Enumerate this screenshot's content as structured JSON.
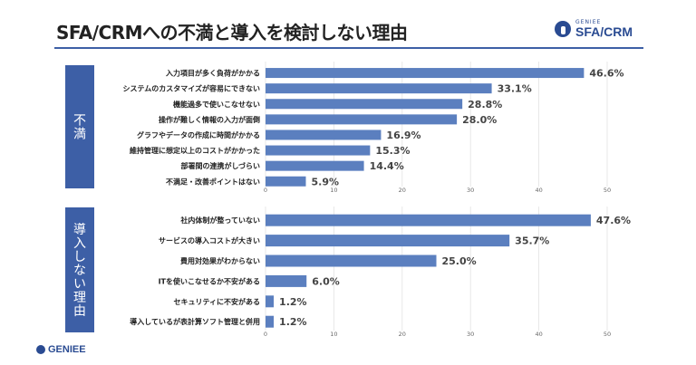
{
  "title": "SFA/CRMへの不満と導入を検討しない理由",
  "brand": {
    "small": "GENIEE",
    "big": "SFA/CRM"
  },
  "footer_logo": "GENIEE",
  "colors": {
    "bar": "#5b7fbf",
    "side_box": "#3d5fa6",
    "rule": "#3d5fa6"
  },
  "chart_data": [
    {
      "type": "bar",
      "orientation": "horizontal",
      "section_label": "不満",
      "categories": [
        "入力項目が多く負荷がかかる",
        "システムのカスタマイズが容易にできない",
        "機能過多で使いこなせない",
        "操作が難しく情報の入力が面倒",
        "グラフやデータの作成に時間がかかる",
        "維持管理に想定以上のコストがかかった",
        "部署間の連携がしづらい",
        "不満足・改善ポイントはない"
      ],
      "values": [
        46.6,
        33.1,
        28.8,
        28.0,
        16.9,
        15.3,
        14.4,
        5.9
      ],
      "value_labels": [
        "46.6%",
        "33.1%",
        "28.8%",
        "28.0%",
        "16.9%",
        "15.3%",
        "14.4%",
        "5.9%"
      ],
      "xlim": [
        0,
        50
      ],
      "ticks": [
        0,
        10,
        20,
        30,
        40,
        50
      ]
    },
    {
      "type": "bar",
      "orientation": "horizontal",
      "section_label": "導入しない理由",
      "categories": [
        "社内体制が整っていない",
        "サービスの導入コストが大きい",
        "費用対効果がわからない",
        "ITを使いこなせるか不安がある",
        "セキュリティに不安がある",
        "導入しているが表計算ソフト管理と併用"
      ],
      "values": [
        47.6,
        35.7,
        25.0,
        6.0,
        1.2,
        1.2
      ],
      "value_labels": [
        "47.6%",
        "35.7%",
        "25.0%",
        "6.0%",
        "1.2%",
        "1.2%"
      ],
      "xlim": [
        0,
        50
      ],
      "ticks": [
        0,
        10,
        20,
        30,
        40,
        50
      ]
    }
  ]
}
